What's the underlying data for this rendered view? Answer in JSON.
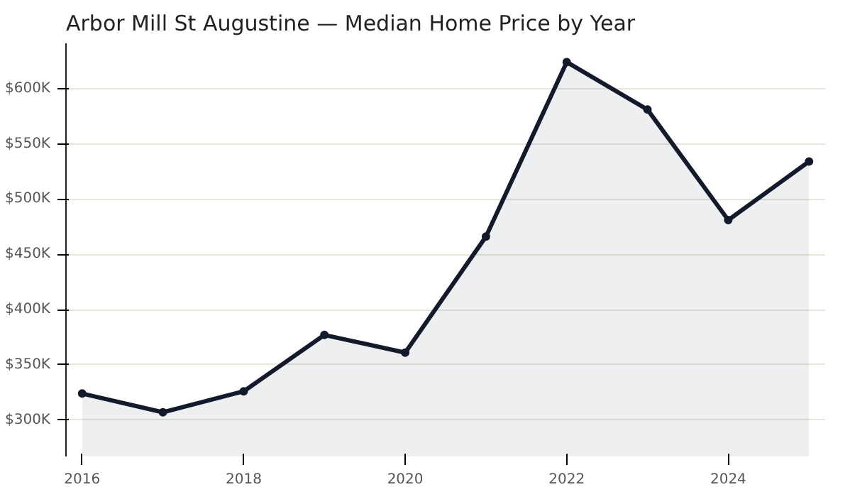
{
  "chart_data": {
    "type": "area",
    "title": "Arbor Mill St Augustine — Median Home Price by Year",
    "x": [
      2016,
      2017,
      2018,
      2019,
      2020,
      2021,
      2022,
      2023,
      2024,
      2025
    ],
    "series": [
      {
        "color": "#121a2c",
        "values": [
          324000,
          307000,
          326000,
          377000,
          361000,
          466000,
          624000,
          581000,
          481000,
          534000
        ]
      }
    ],
    "xlim": [
      2015.8,
      2025.2
    ],
    "xticks": [
      2016,
      2018,
      2020,
      2022,
      2024
    ],
    "ylim": [
      267000,
      641000
    ],
    "yticks": [
      {
        "value": 300000,
        "label": "$300K"
      },
      {
        "value": 350000,
        "label": "$350K"
      },
      {
        "value": 400000,
        "label": "$400K"
      },
      {
        "value": 450000,
        "label": "$450K"
      },
      {
        "value": 500000,
        "label": "$500K"
      },
      {
        "value": 550000,
        "label": "$550K"
      },
      {
        "value": 600000,
        "label": "$600K"
      }
    ],
    "grid": "y",
    "marker": "circle",
    "line_style": "solid"
  }
}
